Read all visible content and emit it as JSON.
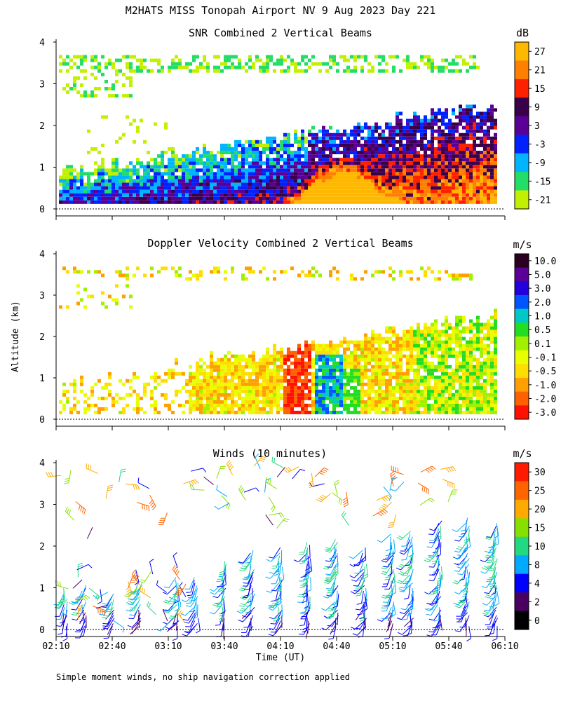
{
  "figure": {
    "title": "M2HATS MISS Tonopah Airport NV   9 Aug 2023 Day 221",
    "ylabel": "Altitude (km)",
    "xlabel": "Time (UT)",
    "footnote": "Simple moment winds, no ship navigation correction applied"
  },
  "chart_data": [
    {
      "type": "heatmap",
      "title": "SNR Combined 2 Vertical Beams",
      "x_ticks": [
        "02:10",
        "02:40",
        "03:10",
        "03:40",
        "04:10",
        "04:40",
        "05:10",
        "05:40",
        "06:10"
      ],
      "xlim_minutes_ut": [
        130,
        370
      ],
      "y_ticks": [
        "0",
        "1",
        "2",
        "3",
        "4"
      ],
      "ylim_km": [
        0,
        4
      ],
      "colorbar": {
        "unit": "dB",
        "labels": [
          "27",
          "21",
          "15",
          "9",
          "3",
          "-3",
          "-9",
          "-15",
          "-21"
        ],
        "colors": [
          "#ffb800",
          "#ff7f00",
          "#ff2000",
          "#3a004a",
          "#5a0096",
          "#0022ff",
          "#00b4ff",
          "#22dd66",
          "#c2f000"
        ]
      },
      "features": [
        {
          "name": "boundary layer top rising",
          "time_min": [
            135,
            370
          ],
          "top_km_start": 0.9,
          "top_km_end": 2.5
        },
        {
          "name": "strong echo core",
          "time_min": [
            255,
            310
          ],
          "top_km": 1.4
        },
        {
          "name": "elevated layer",
          "time_min": [
            135,
            360
          ],
          "altitude_km": 3.5
        }
      ]
    },
    {
      "type": "heatmap",
      "title": "Doppler Velocity Combined 2 Vertical Beams",
      "x_ticks": [
        "02:10",
        "02:40",
        "03:10",
        "03:40",
        "04:10",
        "04:40",
        "05:10",
        "05:40",
        "06:10"
      ],
      "xlim_minutes_ut": [
        130,
        370
      ],
      "y_ticks": [
        "0",
        "1",
        "2",
        "3",
        "4"
      ],
      "ylim_km": [
        0,
        4
      ],
      "colorbar": {
        "unit": "m/s",
        "labels": [
          "10.0",
          "5.0",
          "3.0",
          "2.0",
          "1.0",
          "0.5",
          "0.1",
          "-0.1",
          "-0.5",
          "-1.0",
          "-2.0",
          "-3.0"
        ],
        "colors": [
          "#2a0020",
          "#5a0096",
          "#2200dd",
          "#0055ff",
          "#00c8c8",
          "#22dd22",
          "#a0f000",
          "#e8ff00",
          "#ffdd00",
          "#ffa000",
          "#ff6000",
          "#ff1000"
        ]
      },
      "features": [
        {
          "name": "downdraft column",
          "time_min": [
            270,
            285
          ],
          "velocity_ms": 2.0
        },
        {
          "name": "updraft region",
          "time_min": [
            250,
            265
          ],
          "velocity_ms": -2.0
        }
      ]
    },
    {
      "type": "barbs",
      "title": "Winds (10 minutes)",
      "x_ticks": [
        "02:10",
        "02:40",
        "03:10",
        "03:40",
        "04:10",
        "04:40",
        "05:10",
        "05:40",
        "06:10"
      ],
      "xlim_minutes_ut": [
        130,
        370
      ],
      "y_ticks": [
        "0",
        "1",
        "2",
        "3",
        "4"
      ],
      "ylim_km": [
        0,
        4
      ],
      "colorbar": {
        "unit": "m/s",
        "labels": [
          "30",
          "25",
          "20",
          "15",
          "10",
          "8",
          "4",
          "2",
          "0"
        ],
        "colors": [
          "#ff1a00",
          "#ff6400",
          "#ffaa00",
          "#88e000",
          "#22d880",
          "#00aaff",
          "#0000ff",
          "#4a0060",
          "#000000"
        ]
      },
      "column_times_min": [
        135,
        145,
        160,
        175,
        195,
        205,
        220,
        235,
        250,
        265,
        280,
        295,
        310,
        320,
        335,
        350,
        365
      ],
      "column_top_km": [
        1.0,
        1.1,
        0.9,
        1.2,
        1.3,
        1.3,
        1.7,
        1.9,
        2.0,
        2.1,
        2.2,
        2.0,
        2.3,
        2.4,
        2.6,
        2.7,
        2.6
      ]
    }
  ]
}
